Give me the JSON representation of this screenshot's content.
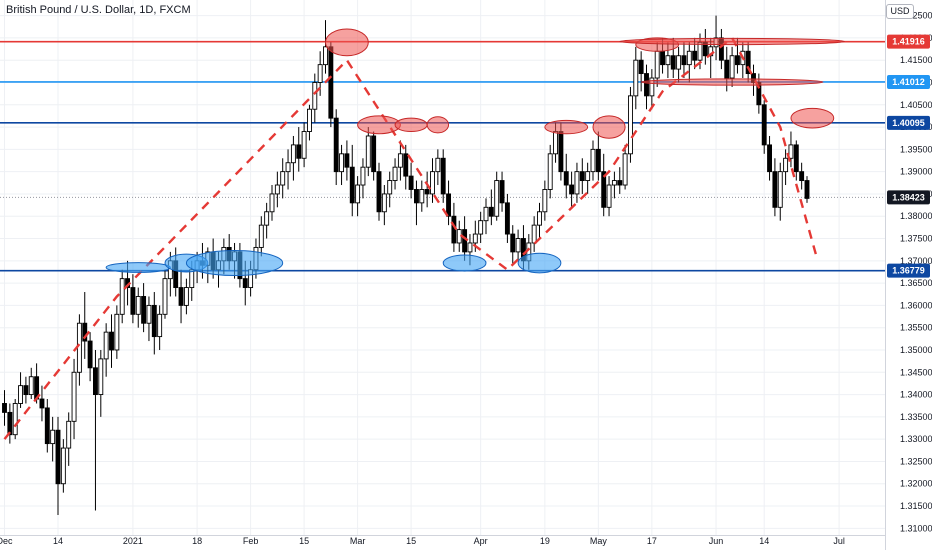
{
  "header": {
    "title": "British Pound / U.S. Dollar, 1D, FXCM",
    "currency": "USD"
  },
  "colors": {
    "background": "#ffffff",
    "grid": "#eef0f4",
    "axis_text": "#131722",
    "candle_up_body": "#ffffff",
    "candle_down_body": "#000000",
    "candle_wick": "#000000",
    "resistance_line": "#e53935",
    "light_blue_line": "#2196f3",
    "dark_blue_line": "#0d47a1",
    "trend_dash": "#e53935",
    "ellipse_red_fill": "rgba(239,83,80,0.55)",
    "ellipse_red_stroke": "#c62828",
    "ellipse_blue_fill": "rgba(66,165,245,0.6)",
    "ellipse_blue_stroke": "#1565c0",
    "current_price_tag": "#131722"
  },
  "chart_data": {
    "type": "candlestick",
    "symbol": "GBPUSD",
    "interval": "1D",
    "ylim": [
      1.3085,
      1.4285
    ],
    "y_ticks": [
      "1.42500",
      "1.42000",
      "1.41500",
      "1.41000",
      "1.40500",
      "1.40000",
      "1.39500",
      "1.39000",
      "1.38500",
      "1.38000",
      "1.37500",
      "1.37000",
      "1.36500",
      "1.36000",
      "1.35500",
      "1.35000",
      "1.34500",
      "1.34000",
      "1.33500",
      "1.33000",
      "1.32500",
      "1.32000",
      "1.31500",
      "1.31000"
    ],
    "x_ticks": [
      {
        "index": 0,
        "label": "Dec"
      },
      {
        "index": 10,
        "label": "14"
      },
      {
        "index": 24,
        "label": "2021"
      },
      {
        "index": 36,
        "label": "18"
      },
      {
        "index": 46,
        "label": "Feb"
      },
      {
        "index": 56,
        "label": "15"
      },
      {
        "index": 66,
        "label": "Mar"
      },
      {
        "index": 76,
        "label": "15"
      },
      {
        "index": 89,
        "label": "Apr"
      },
      {
        "index": 101,
        "label": "19"
      },
      {
        "index": 111,
        "label": "May"
      },
      {
        "index": 121,
        "label": "17"
      },
      {
        "index": 133,
        "label": "Jun"
      },
      {
        "index": 142,
        "label": "14"
      },
      {
        "index": 156,
        "label": "Jul"
      }
    ],
    "levels": [
      {
        "value": 1.41916,
        "label": "1.41916",
        "color": "#e53935"
      },
      {
        "value": 1.41012,
        "label": "1.41012",
        "color": "#2196f3"
      },
      {
        "value": 1.40095,
        "label": "1.40095",
        "color": "#0d47a1"
      },
      {
        "value": 1.36779,
        "label": "1.36779",
        "color": "#0d47a1"
      }
    ],
    "current_price": {
      "value": 1.38423,
      "label": "1.38423"
    },
    "candles": [
      [
        1.338,
        1.341,
        1.333,
        1.336
      ],
      [
        1.336,
        1.338,
        1.329,
        1.331
      ],
      [
        1.331,
        1.339,
        1.33,
        1.338
      ],
      [
        1.338,
        1.345,
        1.337,
        1.342
      ],
      [
        1.342,
        1.344,
        1.338,
        1.34
      ],
      [
        1.34,
        1.346,
        1.339,
        1.344
      ],
      [
        1.344,
        1.347,
        1.338,
        1.339
      ],
      [
        1.339,
        1.342,
        1.334,
        1.337
      ],
      [
        1.337,
        1.339,
        1.327,
        1.329
      ],
      [
        1.329,
        1.335,
        1.325,
        1.332
      ],
      [
        1.332,
        1.335,
        1.313,
        1.32
      ],
      [
        1.32,
        1.33,
        1.318,
        1.328
      ],
      [
        1.328,
        1.336,
        1.324,
        1.334
      ],
      [
        1.334,
        1.348,
        1.33,
        1.345
      ],
      [
        1.345,
        1.358,
        1.342,
        1.356
      ],
      [
        1.356,
        1.363,
        1.348,
        1.352
      ],
      [
        1.352,
        1.354,
        1.343,
        1.346
      ],
      [
        1.346,
        1.35,
        1.314,
        1.34
      ],
      [
        1.34,
        1.35,
        1.335,
        1.348
      ],
      [
        1.348,
        1.356,
        1.344,
        1.354
      ],
      [
        1.354,
        1.358,
        1.346,
        1.35
      ],
      [
        1.35,
        1.36,
        1.348,
        1.358
      ],
      [
        1.358,
        1.368,
        1.356,
        1.366
      ],
      [
        1.366,
        1.37,
        1.36,
        1.364
      ],
      [
        1.364,
        1.367,
        1.356,
        1.358
      ],
      [
        1.358,
        1.364,
        1.355,
        1.362
      ],
      [
        1.362,
        1.365,
        1.354,
        1.356
      ],
      [
        1.356,
        1.362,
        1.352,
        1.36
      ],
      [
        1.36,
        1.363,
        1.349,
        1.353
      ],
      [
        1.353,
        1.36,
        1.35,
        1.358
      ],
      [
        1.358,
        1.368,
        1.357,
        1.366
      ],
      [
        1.366,
        1.372,
        1.362,
        1.37
      ],
      [
        1.37,
        1.373,
        1.362,
        1.364
      ],
      [
        1.364,
        1.368,
        1.356,
        1.36
      ],
      [
        1.36,
        1.366,
        1.358,
        1.364
      ],
      [
        1.364,
        1.37,
        1.361,
        1.368
      ],
      [
        1.368,
        1.372,
        1.365,
        1.37
      ],
      [
        1.37,
        1.374,
        1.366,
        1.369
      ],
      [
        1.369,
        1.373,
        1.365,
        1.372
      ],
      [
        1.372,
        1.375,
        1.366,
        1.368
      ],
      [
        1.368,
        1.372,
        1.364,
        1.37
      ],
      [
        1.37,
        1.375,
        1.367,
        1.373
      ],
      [
        1.373,
        1.376,
        1.368,
        1.37
      ],
      [
        1.37,
        1.374,
        1.366,
        1.372
      ],
      [
        1.372,
        1.374,
        1.364,
        1.366
      ],
      [
        1.366,
        1.37,
        1.36,
        1.364
      ],
      [
        1.364,
        1.37,
        1.362,
        1.368
      ],
      [
        1.368,
        1.375,
        1.366,
        1.373
      ],
      [
        1.373,
        1.38,
        1.371,
        1.378
      ],
      [
        1.378,
        1.383,
        1.375,
        1.381
      ],
      [
        1.381,
        1.387,
        1.379,
        1.385
      ],
      [
        1.385,
        1.39,
        1.382,
        1.387
      ],
      [
        1.387,
        1.393,
        1.384,
        1.39
      ],
      [
        1.39,
        1.395,
        1.386,
        1.392
      ],
      [
        1.392,
        1.398,
        1.388,
        1.396
      ],
      [
        1.396,
        1.4,
        1.39,
        1.393
      ],
      [
        1.393,
        1.401,
        1.391,
        1.399
      ],
      [
        1.399,
        1.405,
        1.397,
        1.404
      ],
      [
        1.404,
        1.412,
        1.401,
        1.41
      ],
      [
        1.41,
        1.417,
        1.407,
        1.414
      ],
      [
        1.414,
        1.424,
        1.412,
        1.418
      ],
      [
        1.418,
        1.419,
        1.4,
        1.402
      ],
      [
        1.402,
        1.404,
        1.387,
        1.39
      ],
      [
        1.39,
        1.396,
        1.387,
        1.394
      ],
      [
        1.394,
        1.397,
        1.388,
        1.391
      ],
      [
        1.391,
        1.396,
        1.38,
        1.383
      ],
      [
        1.383,
        1.389,
        1.38,
        1.387
      ],
      [
        1.387,
        1.393,
        1.384,
        1.391
      ],
      [
        1.391,
        1.4,
        1.389,
        1.398
      ],
      [
        1.398,
        1.399,
        1.388,
        1.39
      ],
      [
        1.39,
        1.392,
        1.379,
        1.381
      ],
      [
        1.381,
        1.387,
        1.378,
        1.385
      ],
      [
        1.385,
        1.39,
        1.382,
        1.388
      ],
      [
        1.388,
        1.393,
        1.386,
        1.391
      ],
      [
        1.391,
        1.397,
        1.388,
        1.394
      ],
      [
        1.394,
        1.396,
        1.386,
        1.389
      ],
      [
        1.389,
        1.392,
        1.384,
        1.386
      ],
      [
        1.386,
        1.388,
        1.378,
        1.383
      ],
      [
        1.383,
        1.388,
        1.381,
        1.386
      ],
      [
        1.386,
        1.39,
        1.382,
        1.385
      ],
      [
        1.385,
        1.393,
        1.383,
        1.39
      ],
      [
        1.39,
        1.395,
        1.387,
        1.393
      ],
      [
        1.393,
        1.395,
        1.383,
        1.385
      ],
      [
        1.385,
        1.388,
        1.378,
        1.38
      ],
      [
        1.38,
        1.383,
        1.372,
        1.374
      ],
      [
        1.374,
        1.379,
        1.372,
        1.377
      ],
      [
        1.377,
        1.38,
        1.37,
        1.372
      ],
      [
        1.372,
        1.376,
        1.369,
        1.374
      ],
      [
        1.374,
        1.379,
        1.372,
        1.376
      ],
      [
        1.376,
        1.381,
        1.374,
        1.379
      ],
      [
        1.379,
        1.384,
        1.376,
        1.382
      ],
      [
        1.382,
        1.386,
        1.378,
        1.38
      ],
      [
        1.38,
        1.39,
        1.379,
        1.388
      ],
      [
        1.388,
        1.39,
        1.381,
        1.383
      ],
      [
        1.383,
        1.385,
        1.374,
        1.376
      ],
      [
        1.376,
        1.378,
        1.369,
        1.372
      ],
      [
        1.372,
        1.377,
        1.37,
        1.375
      ],
      [
        1.375,
        1.378,
        1.368,
        1.37
      ],
      [
        1.37,
        1.376,
        1.368,
        1.374
      ],
      [
        1.374,
        1.38,
        1.372,
        1.378
      ],
      [
        1.378,
        1.383,
        1.375,
        1.381
      ],
      [
        1.381,
        1.388,
        1.379,
        1.386
      ],
      [
        1.386,
        1.396,
        1.384,
        1.394
      ],
      [
        1.394,
        1.401,
        1.392,
        1.399
      ],
      [
        1.399,
        1.401,
        1.388,
        1.39
      ],
      [
        1.39,
        1.394,
        1.384,
        1.387
      ],
      [
        1.387,
        1.39,
        1.382,
        1.385
      ],
      [
        1.385,
        1.392,
        1.383,
        1.39
      ],
      [
        1.39,
        1.393,
        1.385,
        1.388
      ],
      [
        1.388,
        1.392,
        1.385,
        1.39
      ],
      [
        1.39,
        1.397,
        1.388,
        1.395
      ],
      [
        1.395,
        1.399,
        1.388,
        1.39
      ],
      [
        1.39,
        1.394,
        1.38,
        1.382
      ],
      [
        1.382,
        1.389,
        1.38,
        1.387
      ],
      [
        1.387,
        1.39,
        1.384,
        1.388
      ],
      [
        1.388,
        1.391,
        1.385,
        1.387
      ],
      [
        1.387,
        1.396,
        1.386,
        1.394
      ],
      [
        1.394,
        1.409,
        1.392,
        1.407
      ],
      [
        1.407,
        1.418,
        1.404,
        1.415
      ],
      [
        1.415,
        1.417,
        1.408,
        1.412
      ],
      [
        1.412,
        1.414,
        1.404,
        1.407
      ],
      [
        1.407,
        1.413,
        1.404,
        1.411
      ],
      [
        1.411,
        1.419,
        1.409,
        1.417
      ],
      [
        1.417,
        1.42,
        1.412,
        1.414
      ],
      [
        1.414,
        1.419,
        1.411,
        1.416
      ],
      [
        1.416,
        1.42,
        1.411,
        1.413
      ],
      [
        1.413,
        1.418,
        1.41,
        1.416
      ],
      [
        1.416,
        1.419,
        1.411,
        1.414
      ],
      [
        1.414,
        1.419,
        1.41,
        1.417
      ],
      [
        1.417,
        1.42,
        1.413,
        1.415
      ],
      [
        1.415,
        1.421,
        1.413,
        1.419
      ],
      [
        1.419,
        1.422,
        1.414,
        1.416
      ],
      [
        1.416,
        1.42,
        1.411,
        1.418
      ],
      [
        1.418,
        1.425,
        1.415,
        1.42
      ],
      [
        1.42,
        1.422,
        1.413,
        1.415
      ],
      [
        1.415,
        1.418,
        1.408,
        1.411
      ],
      [
        1.411,
        1.418,
        1.409,
        1.416
      ],
      [
        1.416,
        1.42,
        1.412,
        1.414
      ],
      [
        1.414,
        1.419,
        1.411,
        1.417
      ],
      [
        1.417,
        1.419,
        1.41,
        1.412
      ],
      [
        1.412,
        1.414,
        1.407,
        1.41
      ],
      [
        1.41,
        1.412,
        1.403,
        1.405
      ],
      [
        1.405,
        1.406,
        1.394,
        1.396
      ],
      [
        1.396,
        1.398,
        1.388,
        1.39
      ],
      [
        1.39,
        1.393,
        1.38,
        1.382
      ],
      [
        1.382,
        1.392,
        1.379,
        1.39
      ],
      [
        1.39,
        1.395,
        1.387,
        1.393
      ],
      [
        1.393,
        1.399,
        1.391,
        1.396
      ],
      [
        1.396,
        1.397,
        1.388,
        1.39
      ],
      [
        1.39,
        1.392,
        1.386,
        1.388
      ],
      [
        1.388,
        1.389,
        1.383,
        1.384
      ]
    ]
  }
}
